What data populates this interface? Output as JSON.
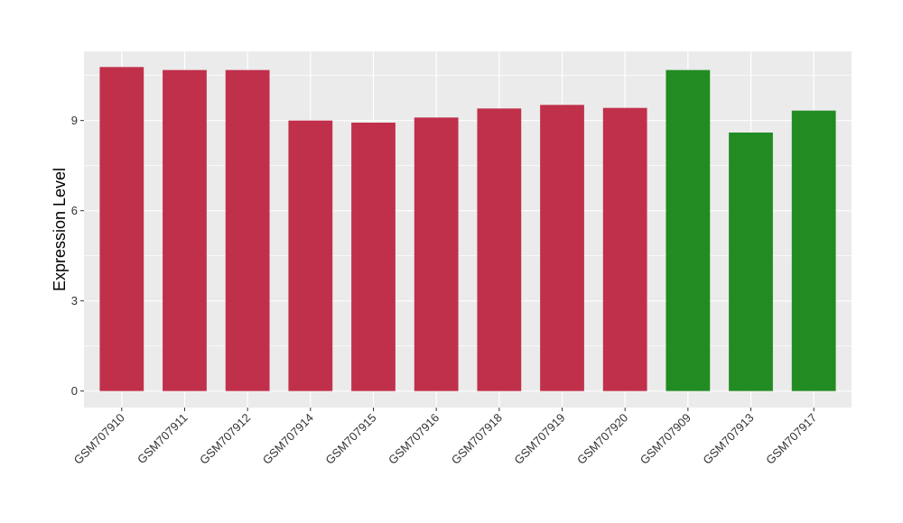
{
  "chart_data": {
    "type": "bar",
    "title": "",
    "xlabel": "",
    "ylabel": "Expression Level",
    "ylim": [
      -0.55,
      11.3
    ],
    "yticks": [
      0,
      3,
      6,
      9
    ],
    "grid": true,
    "categories": [
      "GSM707910",
      "GSM707911",
      "GSM707912",
      "GSM707914",
      "GSM707915",
      "GSM707916",
      "GSM707918",
      "GSM707919",
      "GSM707920",
      "GSM707909",
      "GSM707913",
      "GSM707917"
    ],
    "values": [
      10.78,
      10.68,
      10.68,
      9.0,
      8.93,
      9.1,
      9.4,
      9.52,
      9.42,
      10.68,
      8.6,
      9.33
    ],
    "bar_colors": [
      "#c0304a",
      "#c0304a",
      "#c0304a",
      "#c0304a",
      "#c0304a",
      "#c0304a",
      "#c0304a",
      "#c0304a",
      "#c0304a",
      "#228b22",
      "#228b22",
      "#228b22"
    ],
    "panel_background": "#ebebeb",
    "grid_color": "#ffffff"
  }
}
